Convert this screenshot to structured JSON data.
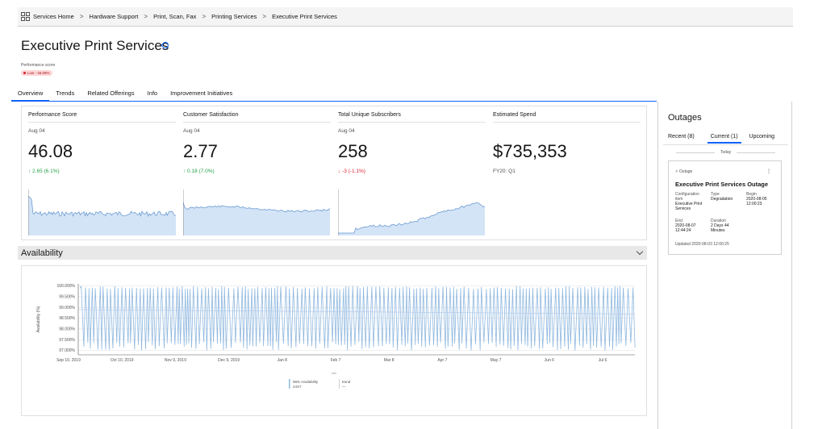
{
  "breadcrumb": [
    "Services Home",
    "Hardware Support",
    "Print, Scan, Fax",
    "Printing Services",
    "Executive Print Services"
  ],
  "page": {
    "title": "Executive Print Services",
    "perf_label": "Performance score",
    "perf_badge": "Low - 46.08%"
  },
  "tabs": [
    "Overview",
    "Trends",
    "Related Offerings",
    "Info",
    "Improvement Initiatives"
  ],
  "kpis": [
    {
      "title": "Performance Score",
      "date": "Aug 04",
      "value": "46.08",
      "delta": "↑ 2.65 (6.1%)",
      "trend": "up"
    },
    {
      "title": "Customer Satisfaction",
      "date": "Aug 04",
      "value": "2.77",
      "delta": "↑ 0.18 (7.0%)",
      "trend": "up"
    },
    {
      "title": "Total Unique Subscribers",
      "date": "Aug 04",
      "value": "258",
      "delta": "↓ -3 (-1.1%)",
      "trend": "down"
    },
    {
      "title": "Estimated Spend",
      "date": "",
      "value": "$735,353",
      "delta": "FY20: Q1",
      "trend": "neutral"
    }
  ],
  "availability": {
    "heading": "Availability"
  },
  "chart_data": {
    "type": "line",
    "ylabel": "Availability (%)",
    "y_ticks": [
      "100.000%",
      "99.500%",
      "99.000%",
      "98.500%",
      "98.000%",
      "97.500%",
      "97.000%"
    ],
    "ylim": [
      96.8,
      100.1
    ],
    "x_ticks": [
      "Sep 10, 2019",
      "Oct 10, 2019",
      "Nov 9, 2019",
      "Dec 9, 2019",
      "Jan 8",
      "Feb 7",
      "Mar 8",
      "Apr 7",
      "May 7",
      "Jun 6",
      "Jul 6"
    ],
    "series": [
      {
        "name": "99% Availability 24X7",
        "color": "#8fb8e0",
        "pattern": "oscillating between about 97.0% and 100.0%"
      }
    ],
    "legend_trend": "trend",
    "legend_trend_value": "—",
    "legend_placement": "bottom-center"
  },
  "outages": {
    "title": "Outages",
    "tabs": [
      "Recent (8)",
      "Current (1)",
      "Upcoming"
    ],
    "active_tab": 1,
    "today_label": "Today",
    "card": {
      "type": "Outage",
      "name": "Executive Print Services Outage",
      "ci_label": "Configuration item",
      "ci_value": "Executive Print Services",
      "type_label": "Type",
      "type_value": "Degradation",
      "begin_label": "Begin",
      "begin_value": "2020-08-05 12:00:23",
      "end_label": "End",
      "end_value": "2020-08-07 12:44:24",
      "duration_label": "Duration",
      "duration_value": "2 Days 44 Minutes",
      "updated": "Updated 2020-08-03 12:00:25"
    }
  }
}
